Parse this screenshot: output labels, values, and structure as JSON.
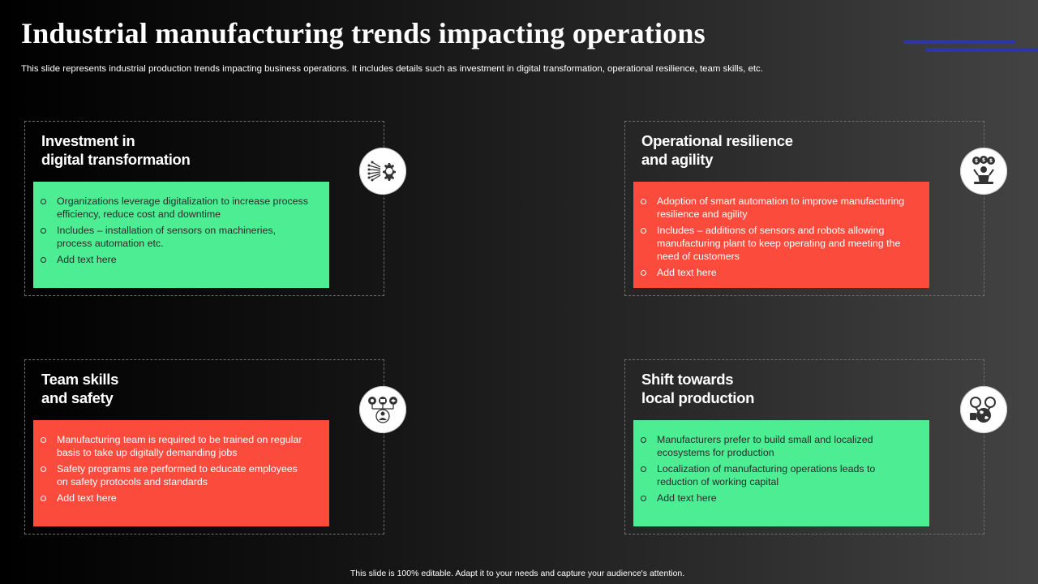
{
  "title": "Industrial manufacturing trends impacting operations",
  "subtitle": "This slide represents industrial production trends impacting business operations. It includes details such as investment in digital transformation, operational resilience, team skills, etc.",
  "cards": [
    {
      "title_line1": "Investment in",
      "title_line2": "digital transformation",
      "color": "#4ded93",
      "icon": "digital-gear-icon",
      "bullets": [
        "Organizations leverage  digitalization to increase process efficiency, reduce cost and downtime",
        "Includes – installation of sensors on machineries, process automation etc.",
        "Add text here"
      ]
    },
    {
      "title_line1": "Operational resilience",
      "title_line2": "and agility",
      "color": "#fb4b3d",
      "icon": "worker-money-icon",
      "bullets": [
        "Adoption of smart automation to improve manufacturing  resilience and agility",
        "Includes – additions of sensors and robots allowing manufacturing  plant to keep operating and meeting the need of customers",
        "Add text here"
      ]
    },
    {
      "title_line1": "Team skills",
      "title_line2": "and safety",
      "color": "#fb4b3d",
      "icon": "team-skills-icon",
      "bullets": [
        "Manufacturing team is required to be trained on regular basis to take up digitally demanding jobs",
        "Safety programs are performed to educate employees on safety protocols and standards",
        "Add text here"
      ]
    },
    {
      "title_line1": "Shift towards",
      "title_line2": "local production",
      "color": "#4ded93",
      "icon": "local-globe-icon",
      "bullets": [
        "Manufacturers prefer to build small and localized ecosystems for production",
        "Localization of manufacturing operations leads to reduction of working capital",
        "Add text here"
      ]
    }
  ],
  "footer": "This slide is 100% editable.  Adapt it to your needs and capture your audience's attention.",
  "accent_color": "#2f34a8"
}
